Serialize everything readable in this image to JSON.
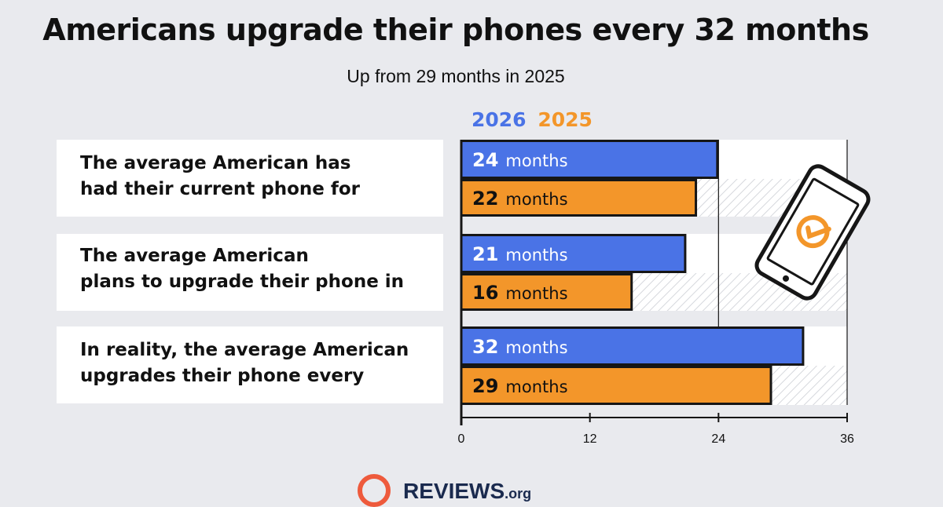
{
  "title": "Americans upgrade their phones every 32 months",
  "subtitle": "Up from 29 months in 2025",
  "legend": {
    "y2026": "2026",
    "y2025": "2025"
  },
  "colors": {
    "c2026": "#4a73e6",
    "c2025": "#f3962a",
    "outline": "#161616"
  },
  "rows": [
    {
      "line1": "The average American has",
      "line2": "had their current phone for"
    },
    {
      "line1": "The average American",
      "line2": "plans to upgrade their phone in"
    },
    {
      "line1": "In reality, the average American",
      "line2": "upgrades their phone every"
    }
  ],
  "unit": "months",
  "logo": {
    "name": "REVIEWS",
    "suffix": ".org"
  },
  "chart_data": {
    "type": "bar",
    "orientation": "horizontal",
    "categories": [
      "The average American has had their current phone for",
      "The average American plans to upgrade their phone in",
      "In reality, the average American upgrades their phone every"
    ],
    "series": [
      {
        "name": "2026",
        "values": [
          24,
          21,
          32
        ]
      },
      {
        "name": "2025",
        "values": [
          22,
          16,
          29
        ]
      }
    ],
    "xlim": [
      0,
      36
    ],
    "ticks": [
      "0",
      "12",
      "24",
      "36"
    ],
    "legend_position": "top"
  }
}
